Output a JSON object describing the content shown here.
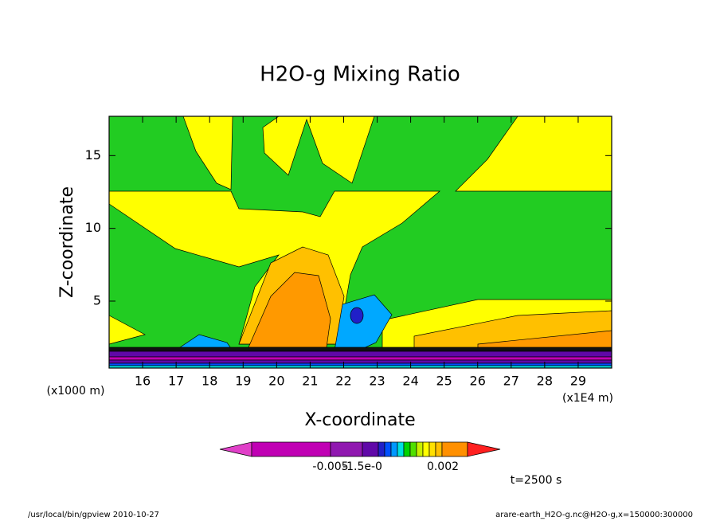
{
  "chart_data": {
    "type": "contour",
    "title": "H2O-g Mixing Ratio",
    "xlabel": "X-coordinate",
    "ylabel": "Z-coordinate",
    "x_unit": "(x1E4 m)",
    "y_unit": "(x1000 m)",
    "xlim": [
      15,
      30
    ],
    "xticks": [
      16,
      17,
      18,
      19,
      20,
      21,
      22,
      23,
      24,
      25,
      26,
      27,
      28,
      29
    ],
    "ylim": [
      0.4,
      17.7
    ],
    "yticks": [
      5,
      10,
      15
    ],
    "colorbar": {
      "colors": [
        "#e040c8",
        "#c000b4",
        "#9018b0",
        "#6008a8",
        "#2020c8",
        "#0050ff",
        "#0098ff",
        "#00e0e0",
        "#00d400",
        "#50e000",
        "#c8f000",
        "#ffff00",
        "#ffe000",
        "#ffc000",
        "#ff9000",
        "#ff2020"
      ],
      "ticks": [
        -0.005,
        {
          "value": -1.5e-05,
          "label": "-1.5e-0"
        },
        0.002
      ]
    },
    "annotation": "t=2500 s"
  },
  "footer": {
    "left": "/usr/local/bin/gpview  2010-10-27",
    "right": "arare-earth_H2O-g.nc@H2O-g,x=150000:300000"
  }
}
